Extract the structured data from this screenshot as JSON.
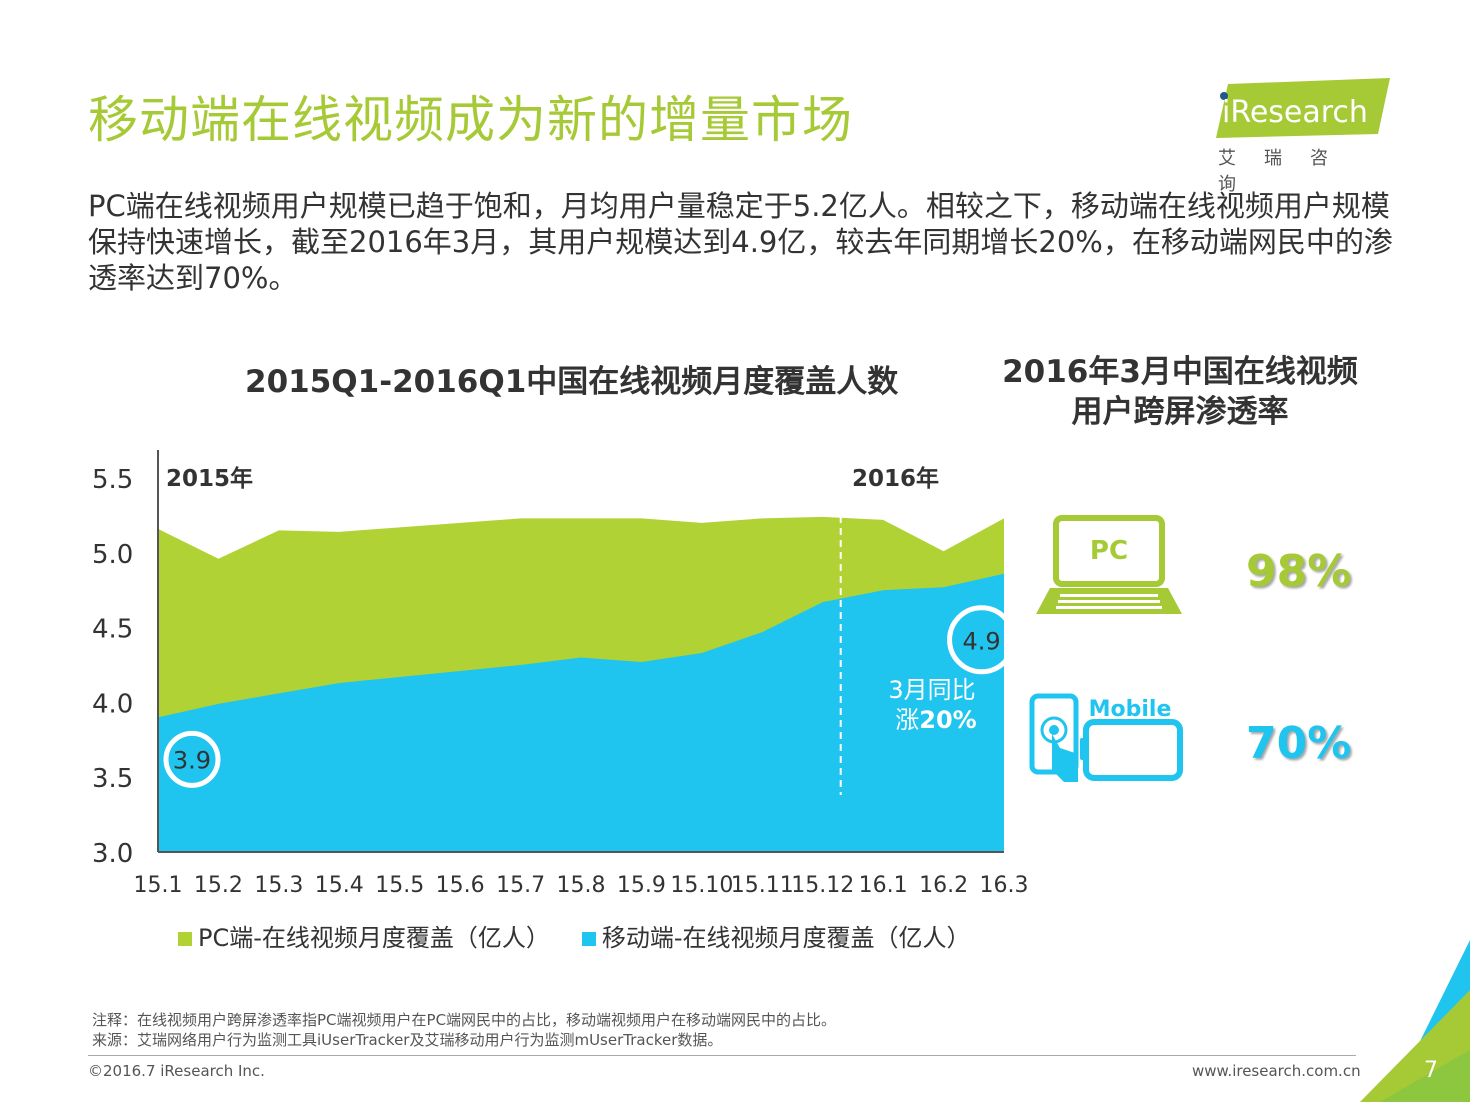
{
  "title": "移动端在线视频成为新的增量市场",
  "logo": {
    "brand": "iResearch",
    "sub": "艾瑞咨询"
  },
  "description": "PC端在线视频用户规模已趋于饱和，月均用户量稳定于5.2亿人。相较之下，移动端在线视频用户规模保持快速增长，截至2016年3月，其用户规模达到4.9亿，较去年同期增长20%，在移动端网民中的渗透率达到70%。",
  "chart_data": {
    "type": "area",
    "title": "2015Q1-2016Q1中国在线视频月度覆盖人数",
    "categories": [
      "15.1",
      "15.2",
      "15.3",
      "15.4",
      "15.5",
      "15.6",
      "15.7",
      "15.8",
      "15.9",
      "15.10",
      "15.11",
      "15.12",
      "16.1",
      "16.2",
      "16.3"
    ],
    "series": [
      {
        "name": "PC端-在线视频月度覆盖（亿人）",
        "color": "#b0d235",
        "values": [
          5.16,
          4.96,
          5.15,
          5.14,
          5.17,
          5.2,
          5.23,
          5.23,
          5.23,
          5.2,
          5.23,
          5.24,
          5.22,
          5.01,
          5.23
        ]
      },
      {
        "name": "移动端-在线视频月度覆盖（亿人）",
        "color": "#1fc4ef",
        "values": [
          3.9,
          3.99,
          4.06,
          4.13,
          4.17,
          4.21,
          4.25,
          4.3,
          4.27,
          4.33,
          4.47,
          4.67,
          4.75,
          4.77,
          4.86
        ]
      }
    ],
    "ylim": [
      3.0,
      5.5
    ],
    "yticks": [
      "3.0",
      "3.5",
      "4.0",
      "4.5",
      "5.0",
      "5.5"
    ],
    "year_labels": [
      "2015年",
      "2016年"
    ],
    "callout_start": "3.9",
    "callout_end": "4.9",
    "growth_line1": "3月同比",
    "growth_prefix": "涨",
    "growth_value": "20%"
  },
  "penetration": {
    "title_line1": "2016年3月中国在线视频",
    "title_line2": "用户跨屏渗透率",
    "pc_label": "PC",
    "pc_value": "98%",
    "mobile_label": "Mobile",
    "mobile_value": "70%",
    "colors": {
      "pc": "#a6c936",
      "mobile": "#1fc4ef"
    }
  },
  "legend": {
    "pc": "PC端-在线视频月度覆盖（亿人）",
    "mobile": "移动端-在线视频月度覆盖（亿人）"
  },
  "notes": {
    "note": "注释：在线视频用户跨屏渗透率指PC端视频用户在PC端网民中的占比，移动端视频用户在移动端网民中的占比。",
    "source": "来源：艾瑞网络用户行为监测工具iUserTracker及艾瑞移动用户行为监测mUserTracker数据。"
  },
  "footer": {
    "copyright": "©2016.7 iResearch Inc.",
    "website": "www.iresearch.com.cn",
    "page": "7"
  }
}
